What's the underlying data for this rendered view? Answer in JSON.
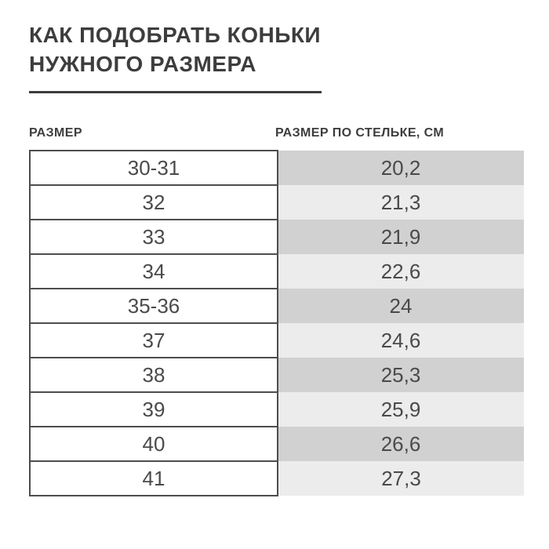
{
  "page": {
    "title_line1": "КАК ПОДОБРАТЬ КОНЬКИ",
    "title_line2": "НУЖНОГО РАЗМЕРА"
  },
  "table": {
    "col1_header": "РАЗМЕР",
    "col2_header": "РАЗМЕР ПО СТЕЛЬКЕ, СМ",
    "rows": [
      {
        "size": "30-31",
        "insole": "20,2"
      },
      {
        "size": "32",
        "insole": "21,3"
      },
      {
        "size": "33",
        "insole": "21,9"
      },
      {
        "size": "34",
        "insole": "22,6"
      },
      {
        "size": "35-36",
        "insole": "24"
      },
      {
        "size": "37",
        "insole": "24,6"
      },
      {
        "size": "38",
        "insole": "25,3"
      },
      {
        "size": "39",
        "insole": "25,9"
      },
      {
        "size": "40",
        "insole": "26,6"
      },
      {
        "size": "41",
        "insole": "27,3"
      }
    ]
  },
  "colors": {
    "title_text": "#3d3d3d",
    "cell_text": "#4a4a4a",
    "cell_border": "#4d4d4d",
    "row_band_dark": "#d1d1d1",
    "row_band_light": "#ececec"
  }
}
